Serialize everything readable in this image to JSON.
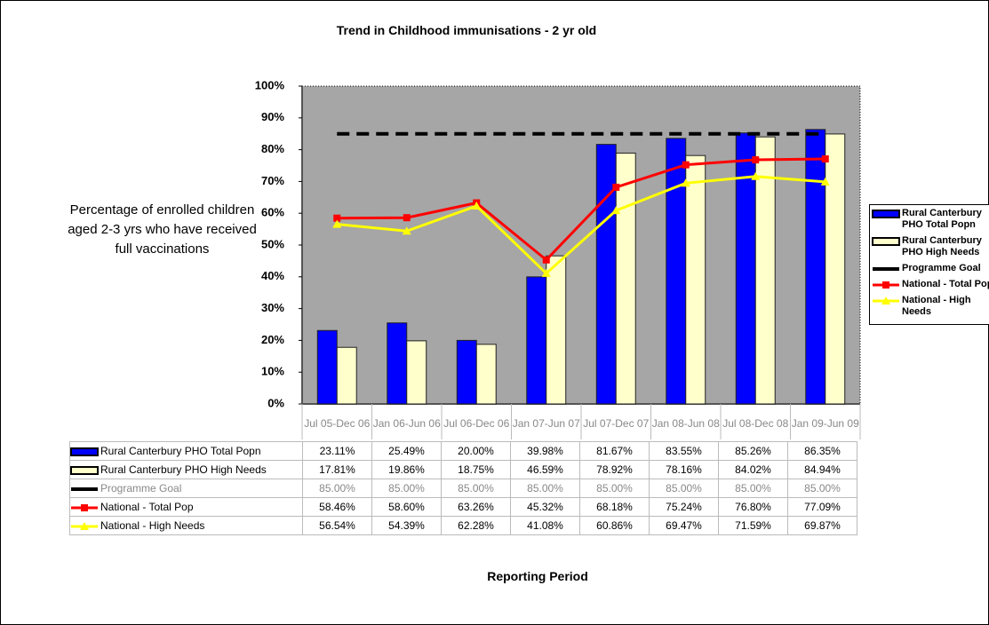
{
  "chart_data": {
    "type": "bar",
    "title": "Trend in Childhood immunisations - 2 yr old",
    "y_label": "Percentage of enrolled children aged 2-3 yrs who have received full vaccinations",
    "x_label": "Reporting Period",
    "categories": [
      "Jul 05-Dec 06",
      "Jan 06-Jun 06",
      "Jul 06-Dec 06",
      "Jan 07-Jun 07",
      "Jul 07-Dec 07",
      "Jan 08-Jun 08",
      "Jul 08-Dec 08",
      "Jan 09-Jun 09"
    ],
    "ylim": [
      0,
      100
    ],
    "yticks": [
      {
        "value": 0,
        "label": "0%"
      },
      {
        "value": 10,
        "label": "10%"
      },
      {
        "value": 20,
        "label": "20%"
      },
      {
        "value": 30,
        "label": "30%"
      },
      {
        "value": 40,
        "label": "40%"
      },
      {
        "value": 50,
        "label": "50%"
      },
      {
        "value": 60,
        "label": "60%"
      },
      {
        "value": 70,
        "label": "70%"
      },
      {
        "value": 80,
        "label": "80%"
      },
      {
        "value": 90,
        "label": "90%"
      },
      {
        "value": 100,
        "label": "100%"
      }
    ],
    "grid": false,
    "legend": "right",
    "series": [
      {
        "name": "Rural Canterbury PHO Total Popn",
        "type": "bar",
        "color": "#0000ff",
        "values": [
          23.11,
          25.49,
          20.0,
          39.98,
          81.67,
          83.55,
          85.26,
          86.35
        ],
        "value_labels": [
          "23.11%",
          "25.49%",
          "20.00%",
          "39.98%",
          "81.67%",
          "83.55%",
          "85.26%",
          "86.35%"
        ]
      },
      {
        "name": "Rural Canterbury PHO High Needs",
        "type": "bar",
        "color": "#ffffcc",
        "values": [
          17.81,
          19.86,
          18.75,
          46.59,
          78.92,
          78.16,
          84.02,
          84.94
        ],
        "value_labels": [
          "17.81%",
          "19.86%",
          "18.75%",
          "46.59%",
          "78.92%",
          "78.16%",
          "84.02%",
          "84.94%"
        ]
      },
      {
        "name": "Programme Goal",
        "type": "dashed",
        "color": "#000000",
        "values": [
          85,
          85,
          85,
          85,
          85,
          85,
          85,
          85
        ],
        "value_labels": [
          "85.00%",
          "85.00%",
          "85.00%",
          "85.00%",
          "85.00%",
          "85.00%",
          "85.00%",
          "85.00%"
        ]
      },
      {
        "name": "National - Total Pop",
        "type": "line",
        "color": "#ff0000",
        "values": [
          58.46,
          58.6,
          63.26,
          45.32,
          68.18,
          75.24,
          76.8,
          77.09
        ],
        "value_labels": [
          "58.46%",
          "58.60%",
          "63.26%",
          "45.32%",
          "68.18%",
          "75.24%",
          "76.80%",
          "77.09%"
        ]
      },
      {
        "name": "National - High Needs",
        "type": "line",
        "color": "#ffff00",
        "values": [
          56.54,
          54.39,
          62.28,
          41.08,
          60.86,
          69.47,
          71.59,
          69.87
        ],
        "value_labels": [
          "56.54%",
          "54.39%",
          "62.28%",
          "41.08%",
          "60.86%",
          "69.47%",
          "71.59%",
          "69.87%"
        ]
      }
    ]
  }
}
